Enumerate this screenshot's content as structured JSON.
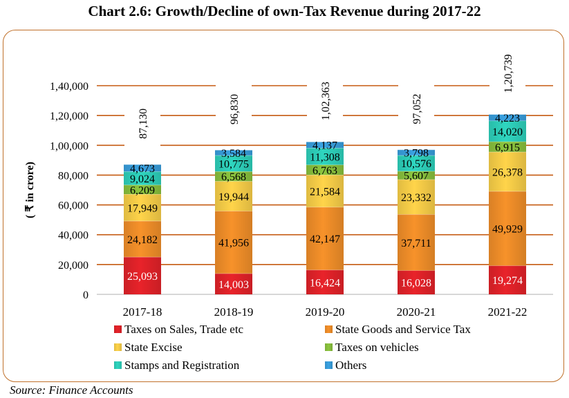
{
  "title": "Chart 2.6: Growth/Decline of own-Tax Revenue during 2017-22",
  "source": "Source: Finance Accounts",
  "colors": {
    "axis": "#bfbfbf",
    "grid": "#c55a11",
    "frame": "#c0702a"
  },
  "chart_data": {
    "type": "bar",
    "stacked": true,
    "ylabel": "( ₹ in crore)",
    "ylim": [
      0,
      140000
    ],
    "yticks": [
      0,
      20000,
      40000,
      60000,
      80000,
      100000,
      120000,
      140000
    ],
    "ytick_labels": [
      "0",
      "20,000",
      "40,000",
      "60,000",
      "80,000",
      "1,00,000",
      "1,20,000",
      "1,40,000"
    ],
    "grid": true,
    "legend_position": "bottom",
    "categories": [
      "2017-18",
      "2018-19",
      "2019-20",
      "2020-21",
      "2021-22"
    ],
    "totals": [
      87130,
      96830,
      102363,
      97052,
      120739
    ],
    "total_labels": [
      "87,130",
      "96,830",
      "1,02,363",
      "97,052",
      "1,20,739"
    ],
    "series": [
      {
        "name": "Taxes on Sales, Trade etc",
        "color": "#e8232a",
        "values": [
          25093,
          14003,
          16424,
          16028,
          19274
        ],
        "labels": [
          "25,093",
          "14,003",
          "16,424",
          "16,028",
          "19,274"
        ]
      },
      {
        "name": "State Goods and Service Tax",
        "color": "#f7922a",
        "values": [
          24182,
          41956,
          42147,
          37711,
          49929
        ],
        "labels": [
          "24,182",
          "41,956",
          "42,147",
          "37,711",
          "49,929"
        ]
      },
      {
        "name": "State Excise",
        "color": "#ffd44a",
        "values": [
          17949,
          19944,
          21584,
          23332,
          26378
        ],
        "labels": [
          "17,949",
          "19,944",
          "21,584",
          "23,332",
          "26,378"
        ]
      },
      {
        "name": "Taxes on vehicles",
        "color": "#8dc63f",
        "values": [
          6209,
          6568,
          6763,
          5607,
          6915
        ],
        "labels": [
          "6,209",
          "6,568",
          "6,763",
          "5,607",
          "6,915"
        ]
      },
      {
        "name": "Stamps and Registration",
        "color": "#2fd6c0",
        "values": [
          9024,
          10775,
          11308,
          10576,
          14020
        ],
        "labels": [
          "9,024",
          "10,775",
          "11,308",
          "10,576",
          "14,020"
        ]
      },
      {
        "name": "Others",
        "color": "#3aa3e3",
        "values": [
          4673,
          3584,
          4137,
          3798,
          4223
        ],
        "labels": [
          "4,673",
          "3,584",
          "4,137",
          "3,798",
          "4,223"
        ]
      }
    ]
  }
}
